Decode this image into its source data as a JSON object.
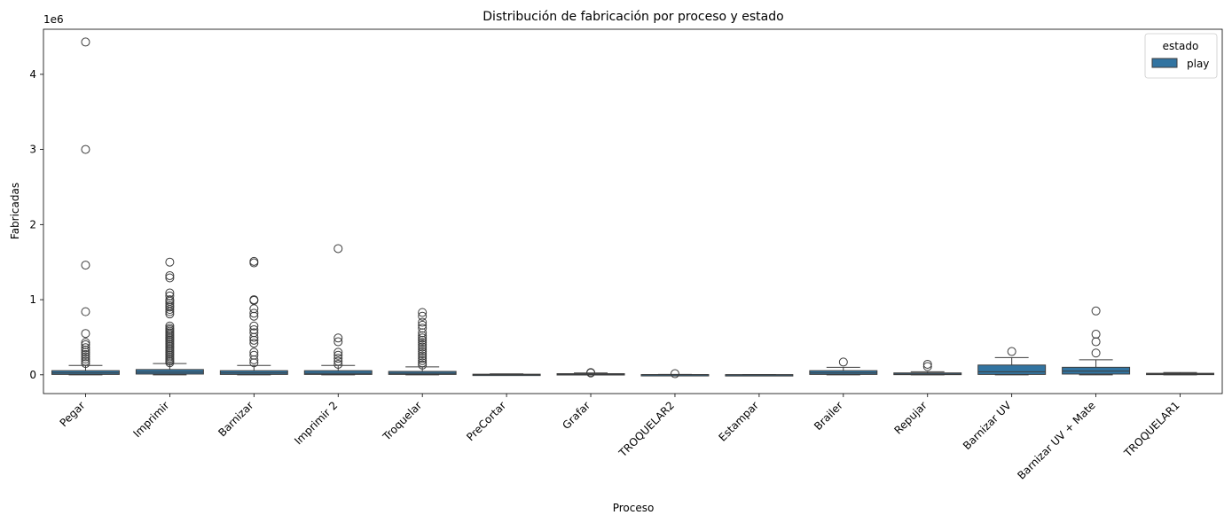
{
  "chart_data": {
    "type": "box",
    "title": "Distribución de fabricación por proceso y estado",
    "xlabel": "Proceso",
    "ylabel": "Fabricadas",
    "y_multiplier_label": "1e6",
    "ylim": [
      -250000,
      4600000
    ],
    "y_ticks": [
      0,
      1000000,
      2000000,
      3000000,
      4000000
    ],
    "y_tick_labels": [
      "0",
      "1",
      "2",
      "3",
      "4"
    ],
    "legend": {
      "title": "estado",
      "entries": [
        "play"
      ],
      "placement": "top-right"
    },
    "colors": {
      "box_fill": "#3274a1",
      "line": "#3d3d3d"
    },
    "categories": [
      "Pegar",
      "Imprimir",
      "Barnizar",
      "Imprimir 2",
      "Troquelar",
      "PreCortar",
      "Grafar",
      "TROQUELAR2",
      "Estampar",
      "Brailer",
      "Repujar",
      "Barnizar UV",
      "Barnizar UV + Mate",
      "TROQUELAR1"
    ],
    "series": [
      {
        "name": "play",
        "boxes": [
          {
            "whislo": 0,
            "q1": 5000,
            "med": 25000,
            "q3": 55000,
            "whishi": 125000,
            "fliers": [
              4430000,
              3000000,
              1460000,
              840000,
              550000,
              430000,
              400000,
              360000,
              330000,
              300000,
              270000,
              240000,
              210000,
              180000,
              150000
            ]
          },
          {
            "whislo": 0,
            "q1": 10000,
            "med": 35000,
            "q3": 70000,
            "whishi": 150000,
            "fliers": [
              1500000,
              1320000,
              1290000,
              1090000,
              1050000,
              1000000,
              980000,
              950000,
              920000,
              900000,
              870000,
              840000,
              810000,
              650000,
              620000,
              600000,
              580000,
              560000,
              540000,
              520000,
              500000,
              480000,
              460000,
              440000,
              420000,
              400000,
              380000,
              360000,
              340000,
              320000,
              300000,
              280000,
              260000,
              240000,
              220000,
              200000,
              180000,
              160000
            ]
          },
          {
            "whislo": 0,
            "q1": 5000,
            "med": 25000,
            "q3": 55000,
            "whishi": 125000,
            "fliers": [
              1510000,
              1490000,
              1000000,
              990000,
              880000,
              820000,
              780000,
              650000,
              600000,
              560000,
              500000,
              460000,
              420000,
              300000,
              260000,
              200000,
              160000
            ]
          },
          {
            "whislo": 0,
            "q1": 5000,
            "med": 20000,
            "q3": 55000,
            "whishi": 125000,
            "fliers": [
              1680000,
              490000,
              440000,
              300000,
              260000,
              220000,
              180000,
              140000
            ]
          },
          {
            "whislo": 0,
            "q1": 5000,
            "med": 20000,
            "q3": 45000,
            "whishi": 105000,
            "fliers": [
              830000,
              780000,
              700000,
              660000,
              620000,
              560000,
              520000,
              490000,
              460000,
              430000,
              400000,
              370000,
              340000,
              310000,
              280000,
              250000,
              220000,
              190000,
              160000,
              130000
            ]
          },
          {
            "whislo": 0,
            "q1": 0,
            "med": 3000,
            "q3": 8000,
            "whishi": 12000,
            "fliers": []
          },
          {
            "whislo": 0,
            "q1": 2000,
            "med": 8000,
            "q3": 15000,
            "whishi": 25000,
            "fliers": [
              30000,
              25000
            ]
          },
          {
            "whislo": 0,
            "q1": 0,
            "med": 2000,
            "q3": 3000,
            "whishi": 5000,
            "fliers": [
              15000
            ]
          },
          {
            "whislo": 0,
            "q1": 0,
            "med": 1000,
            "q3": 2000,
            "whishi": 3000,
            "fliers": []
          },
          {
            "whislo": 0,
            "q1": 5000,
            "med": 25000,
            "q3": 55000,
            "whishi": 100000,
            "fliers": [
              170000
            ]
          },
          {
            "whislo": 0,
            "q1": 2000,
            "med": 10000,
            "q3": 25000,
            "whishi": 40000,
            "fliers": [
              140000,
              110000
            ]
          },
          {
            "whislo": 0,
            "q1": 5000,
            "med": 40000,
            "q3": 130000,
            "whishi": 230000,
            "fliers": [
              310000
            ]
          },
          {
            "whislo": 0,
            "q1": 10000,
            "med": 50000,
            "q3": 100000,
            "whishi": 200000,
            "fliers": [
              850000,
              540000,
              440000,
              290000
            ]
          },
          {
            "whislo": 0,
            "q1": 3000,
            "med": 10000,
            "q3": 20000,
            "whishi": 30000,
            "fliers": []
          }
        ]
      }
    ]
  }
}
